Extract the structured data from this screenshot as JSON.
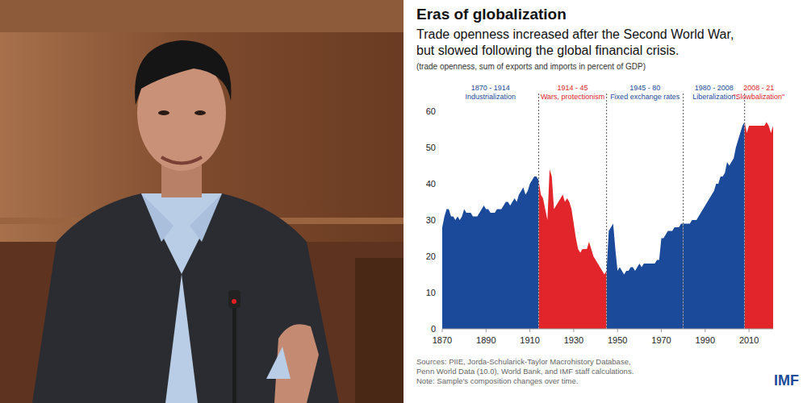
{
  "chart_data": {
    "type": "area",
    "title": "Eras of globalization",
    "subtitle": [
      "Trade openness increased after the Second World War,",
      "but slowed following the global financial crisis."
    ],
    "axis_note": "(trade openness, sum of exports and imports in percent of GDP)",
    "eras": [
      {
        "period": "1870 - 1914",
        "label": "Industrialization",
        "start": 1870,
        "end": 1914,
        "color": "#1c4a9a"
      },
      {
        "period": "1914 - 45",
        "label": "Wars, protectionism",
        "start": 1914,
        "end": 1945,
        "color": "#e1252b"
      },
      {
        "period": "1945 - 80",
        "label": "Fixed exchange rates",
        "start": 1945,
        "end": 1980,
        "color": "#1c4a9a"
      },
      {
        "period": "1980 - 2008",
        "label": "Liberalization",
        "start": 1980,
        "end": 2008,
        "color": "#1c4a9a"
      },
      {
        "period": "2008 - 21",
        "label": "\"Slowbalization\"",
        "start": 2008,
        "end": 2021,
        "color": "#e1252b"
      }
    ],
    "x": [
      1870,
      1871,
      1872,
      1873,
      1874,
      1875,
      1876,
      1877,
      1878,
      1879,
      1880,
      1881,
      1882,
      1883,
      1884,
      1885,
      1886,
      1887,
      1888,
      1889,
      1890,
      1891,
      1892,
      1893,
      1894,
      1895,
      1896,
      1897,
      1898,
      1899,
      1900,
      1901,
      1902,
      1903,
      1904,
      1905,
      1906,
      1907,
      1908,
      1909,
      1910,
      1911,
      1912,
      1913,
      1914,
      1915,
      1916,
      1917,
      1918,
      1919,
      1920,
      1921,
      1922,
      1923,
      1924,
      1925,
      1926,
      1927,
      1928,
      1929,
      1930,
      1931,
      1932,
      1933,
      1934,
      1935,
      1936,
      1937,
      1938,
      1939,
      1940,
      1941,
      1942,
      1943,
      1944,
      1945,
      1946,
      1947,
      1948,
      1949,
      1950,
      1951,
      1952,
      1953,
      1954,
      1955,
      1956,
      1957,
      1958,
      1959,
      1960,
      1961,
      1962,
      1963,
      1964,
      1965,
      1966,
      1967,
      1968,
      1969,
      1970,
      1971,
      1972,
      1973,
      1974,
      1975,
      1976,
      1977,
      1978,
      1979,
      1980,
      1981,
      1982,
      1983,
      1984,
      1985,
      1986,
      1987,
      1988,
      1989,
      1990,
      1991,
      1992,
      1993,
      1994,
      1995,
      1996,
      1997,
      1998,
      1999,
      2000,
      2001,
      2002,
      2003,
      2004,
      2005,
      2006,
      2007,
      2008,
      2009,
      2010,
      2011,
      2012,
      2013,
      2014,
      2015,
      2016,
      2017,
      2018,
      2019,
      2020,
      2021
    ],
    "values": [
      28,
      31,
      33,
      33,
      31,
      31,
      30,
      31,
      30,
      31,
      33,
      32,
      32,
      32,
      31,
      31,
      31,
      32,
      33,
      34,
      33,
      33,
      32,
      32,
      32,
      33,
      33,
      33,
      34,
      35,
      35,
      34,
      35,
      36,
      35,
      37,
      38,
      39,
      37,
      38,
      40,
      41,
      42,
      42,
      41,
      37,
      36,
      33,
      30,
      44,
      42,
      33,
      34,
      35,
      36,
      37,
      35,
      36,
      35,
      33,
      29,
      25,
      22,
      21,
      22,
      22,
      22,
      24,
      22,
      20,
      19,
      18,
      17,
      16,
      15,
      16,
      27,
      28,
      29,
      22,
      16,
      17,
      16,
      15,
      16,
      16,
      17,
      17,
      16,
      17,
      18,
      17,
      18,
      18,
      18,
      18,
      18,
      18,
      19,
      19,
      25,
      25,
      26,
      27,
      27,
      27,
      28,
      28,
      28,
      29,
      29,
      29,
      29,
      29,
      30,
      30,
      30,
      31,
      32,
      33,
      34,
      35,
      36,
      37,
      38,
      40,
      40,
      42,
      42,
      43,
      46,
      45,
      46,
      47,
      50,
      52,
      54,
      56,
      57,
      54,
      56,
      56,
      56,
      56,
      56,
      56,
      56,
      56,
      57,
      56,
      54,
      56
    ],
    "xlim": [
      1870,
      2021
    ],
    "xticks": [
      1870,
      1890,
      1910,
      1930,
      1950,
      1970,
      1990,
      2010
    ],
    "ylim": [
      0,
      60
    ],
    "yticks": [
      0,
      10,
      20,
      30,
      40,
      50,
      60
    ],
    "grid": false,
    "sources": [
      "Sources: PIIE, Jorda-Schularick-Taylor Macrohistory Database,",
      "Penn World Data (10.0), World Bank, and IMF staff calculations."
    ],
    "note": "Note: Sample's composition changes over time.",
    "logo": "IMF"
  }
}
